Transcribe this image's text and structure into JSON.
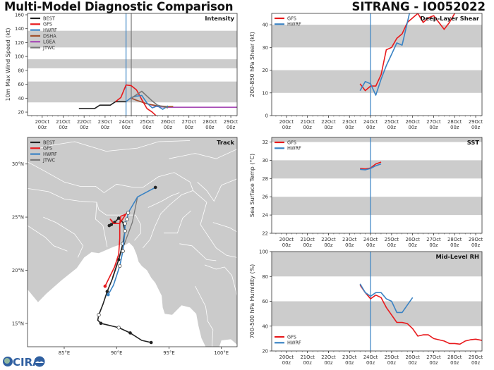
{
  "header": {
    "title": "Multi-Model Diagnostic Comparison",
    "storm": "SITRANG - IO052022"
  },
  "logo": {
    "text": "CIRA"
  },
  "colors": {
    "BEST": "#222222",
    "GFS": "#e8191c",
    "HWRF": "#3a83c4",
    "DSHA": "#a0522d",
    "LGEA": "#a64ab5",
    "JTWC": "#777777",
    "band": "#cccccc",
    "land": "#cbcbcb"
  },
  "x_ticks": [
    "20Oct",
    "21Oct",
    "22Oct",
    "23Oct",
    "24Oct",
    "25Oct",
    "26Oct",
    "27Oct",
    "28Oct",
    "29Oct"
  ],
  "x_tick_sub": "00z",
  "chart_data": [
    {
      "id": "intensity",
      "type": "line",
      "title": "Intensity",
      "ylabel": "10m Max Wind Speed (kt)",
      "xlabel": "",
      "xlim_days": [
        -0.7,
        9.3
      ],
      "ylim": [
        15,
        162
      ],
      "yticks": [
        20,
        40,
        60,
        80,
        100,
        120,
        140,
        160
      ],
      "bands": [
        [
          34,
          64
        ],
        [
          83,
          96
        ],
        [
          113,
          137
        ]
      ],
      "vlines": [
        {
          "x": 4.0,
          "color": "HWRF"
        },
        {
          "x": 4.25,
          "color": "JTWC"
        }
      ],
      "legend": [
        "BEST",
        "GFS",
        "HWRF",
        "DSHA",
        "LGEA",
        "JTWC"
      ],
      "legend_position": "top-left",
      "series": [
        {
          "name": "BEST",
          "x": [
            1.75,
            2.0,
            2.25,
            2.5,
            2.75,
            3.0,
            3.25,
            3.5,
            3.75,
            4.0
          ],
          "y": [
            25,
            25,
            25,
            25,
            30,
            30,
            30,
            35,
            35,
            35
          ]
        },
        {
          "name": "GFS",
          "x": [
            3.5,
            3.75,
            4.0,
            4.25,
            4.5,
            4.75,
            5.0,
            5.25,
            5.5
          ],
          "y": [
            35,
            41,
            59,
            58,
            52,
            38,
            25,
            20,
            13
          ]
        },
        {
          "name": "HWRF",
          "x": [
            4.0,
            4.25,
            4.5,
            4.75,
            5.0,
            5.25,
            5.5,
            5.75,
            6.0
          ],
          "y": [
            35,
            41,
            43,
            44,
            33,
            26,
            29,
            24,
            29
          ]
        },
        {
          "name": "LGEA",
          "x": [
            4.25,
            4.5,
            5.0,
            5.5,
            6.0,
            7.0,
            8.0,
            9.3
          ],
          "y": [
            40,
            37,
            32,
            28,
            27,
            27,
            27,
            27
          ]
        },
        {
          "name": "DSHA",
          "x": [
            4.25,
            4.5,
            5.0,
            5.5,
            6.0,
            6.25
          ],
          "y": [
            40,
            37,
            32,
            29,
            28,
            28
          ]
        },
        {
          "name": "JTWC",
          "x": [
            4.25,
            4.5,
            4.75,
            5.0,
            5.25,
            5.5,
            6.0
          ],
          "y": [
            40,
            45,
            50,
            43,
            36,
            30,
            26
          ]
        }
      ]
    },
    {
      "id": "shear",
      "type": "line",
      "title": "Deep-Layer Shear",
      "ylabel": "200-850 hPa Shear (kt)",
      "xlabel": "",
      "xlim_days": [
        -0.7,
        9.3
      ],
      "ylim": [
        0,
        45
      ],
      "yticks": [
        0,
        10,
        20,
        30,
        40
      ],
      "bands": [
        [
          10,
          20
        ],
        [
          30,
          40
        ]
      ],
      "vlines": [
        {
          "x": 4.0,
          "color": "HWRF"
        }
      ],
      "legend": [
        "GFS",
        "HWRF"
      ],
      "legend_position": "top-left",
      "series": [
        {
          "name": "GFS",
          "x": [
            3.5,
            3.75,
            4.0,
            4.25,
            4.5,
            4.75,
            5.0,
            5.25,
            5.5,
            5.75,
            6.0,
            6.25,
            6.5,
            6.75,
            7.0,
            7.25,
            7.5,
            7.75,
            8.0
          ],
          "y": [
            14,
            11,
            13,
            13,
            18,
            29,
            30,
            34,
            36,
            41,
            43,
            45,
            41,
            43,
            44,
            41,
            38,
            41,
            45
          ]
        },
        {
          "name": "HWRF",
          "x": [
            3.5,
            3.75,
            4.0,
            4.25,
            4.5,
            4.75,
            5.0,
            5.25,
            5.5,
            5.75,
            5.85
          ],
          "y": [
            11,
            15,
            14,
            9,
            16,
            22,
            27,
            32,
            31,
            41,
            45
          ]
        }
      ]
    },
    {
      "id": "sst",
      "type": "line",
      "title": "SST",
      "ylabel": "Sea Surface Temp (°C)",
      "xlabel": "",
      "xlim_days": [
        -0.7,
        9.3
      ],
      "ylim": [
        22,
        32.5
      ],
      "yticks": [
        22,
        24,
        26,
        28,
        30,
        32
      ],
      "bands": [
        [
          24,
          26
        ],
        [
          28,
          30
        ],
        [
          32,
          34
        ]
      ],
      "vlines": [
        {
          "x": 4.0,
          "color": "HWRF"
        }
      ],
      "legend": [
        "GFS",
        "HWRF"
      ],
      "legend_position": "top-left",
      "series": [
        {
          "name": "GFS",
          "x": [
            3.5,
            3.75,
            4.0,
            4.25,
            4.5
          ],
          "y": [
            29.1,
            29.05,
            29.15,
            29.6,
            29.8
          ]
        },
        {
          "name": "HWRF",
          "x": [
            3.5,
            3.75,
            4.0,
            4.25,
            4.5
          ],
          "y": [
            29.0,
            28.95,
            29.1,
            29.4,
            29.6
          ]
        }
      ]
    },
    {
      "id": "rh",
      "type": "line",
      "title": "Mid-Level RH",
      "ylabel": "700-500 hPa Humidity (%)",
      "xlabel": "",
      "xlim_days": [
        -0.7,
        9.3
      ],
      "ylim": [
        20,
        100
      ],
      "yticks": [
        20,
        40,
        60,
        80,
        100
      ],
      "bands": [
        [
          40,
          60
        ],
        [
          80,
          100
        ]
      ],
      "vlines": [
        {
          "x": 4.0,
          "color": "HWRF"
        }
      ],
      "legend": [
        "GFS",
        "HWRF"
      ],
      "legend_position": "bottom-left",
      "series": [
        {
          "name": "GFS",
          "x": [
            3.5,
            3.75,
            4.0,
            4.25,
            4.5,
            4.75,
            5.0,
            5.25,
            5.5,
            5.75,
            6.0,
            6.25,
            6.5,
            6.75,
            7.0,
            7.25,
            7.5,
            7.75,
            8.0,
            8.25,
            8.5,
            8.75,
            9.0,
            9.3
          ],
          "y": [
            73,
            67,
            62,
            65,
            63,
            55,
            49,
            43,
            43,
            42,
            38,
            32,
            33,
            33,
            30,
            29,
            28,
            26,
            26,
            25.5,
            28,
            29,
            29.5,
            28.5
          ]
        },
        {
          "name": "HWRF",
          "x": [
            3.5,
            3.75,
            4.0,
            4.25,
            4.5,
            4.75,
            5.0,
            5.25,
            5.5,
            5.75,
            6.0
          ],
          "y": [
            74,
            67,
            64,
            67,
            67,
            62,
            60,
            51,
            51,
            57,
            63
          ]
        }
      ]
    },
    {
      "id": "track",
      "type": "scatter",
      "title": "Track",
      "xlabel": "",
      "ylabel": "",
      "xlim": [
        81.5,
        101.5
      ],
      "ylim": [
        12.8,
        32.5
      ],
      "xticks": [
        85,
        90,
        95,
        100
      ],
      "xtick_labels": [
        "85°E",
        "90°E",
        "95°E",
        "100°E"
      ],
      "yticks": [
        15,
        20,
        25,
        30
      ],
      "ytick_labels": [
        "15°N",
        "20°N",
        "25°N",
        "30°N"
      ],
      "legend": [
        "BEST",
        "GFS",
        "HWRF",
        "JTWC"
      ],
      "legend_position": "top-left",
      "series": [
        {
          "name": "BEST",
          "lon": [
            93.3,
            92.4,
            91.3,
            90.2,
            88.5,
            88.2,
            88.3,
            88.7,
            89.1,
            89.6,
            90.2,
            90.6,
            90.8,
            90.6,
            90.2,
            89.8,
            89.5,
            89.3
          ],
          "lat": [
            13.2,
            13.4,
            14.1,
            14.6,
            15.0,
            15.3,
            15.8,
            16.8,
            18.0,
            19.2,
            21.0,
            22.5,
            23.7,
            24.5,
            24.9,
            24.5,
            24.3,
            24.2
          ]
        },
        {
          "name": "GFS",
          "lon": [
            88.9,
            89.3,
            89.8,
            90.2,
            90.3,
            90.3,
            90.4,
            90.7,
            90.9,
            90.3,
            89.7,
            89.4,
            89.6
          ],
          "lat": [
            18.5,
            19.3,
            20.3,
            21.5,
            23.0,
            24.4,
            25.1,
            25.2,
            25.3,
            24.4,
            24.4,
            24.8,
            24.6
          ]
        },
        {
          "name": "HWRF",
          "lon": [
            89.2,
            89.7,
            90.3,
            90.6,
            90.8,
            90.8,
            91.0,
            91.1,
            92.0,
            93.7
          ],
          "lat": [
            17.7,
            18.6,
            20.4,
            21.8,
            23.7,
            24.4,
            24.8,
            25.4,
            26.9,
            27.8
          ]
        },
        {
          "name": "JTWC",
          "lon": [
            89.6,
            90.0,
            90.4,
            90.9,
            91.5,
            92.0
          ],
          "lat": [
            19.3,
            20.5,
            21.6,
            22.9,
            24.5,
            26.9
          ]
        }
      ]
    }
  ]
}
